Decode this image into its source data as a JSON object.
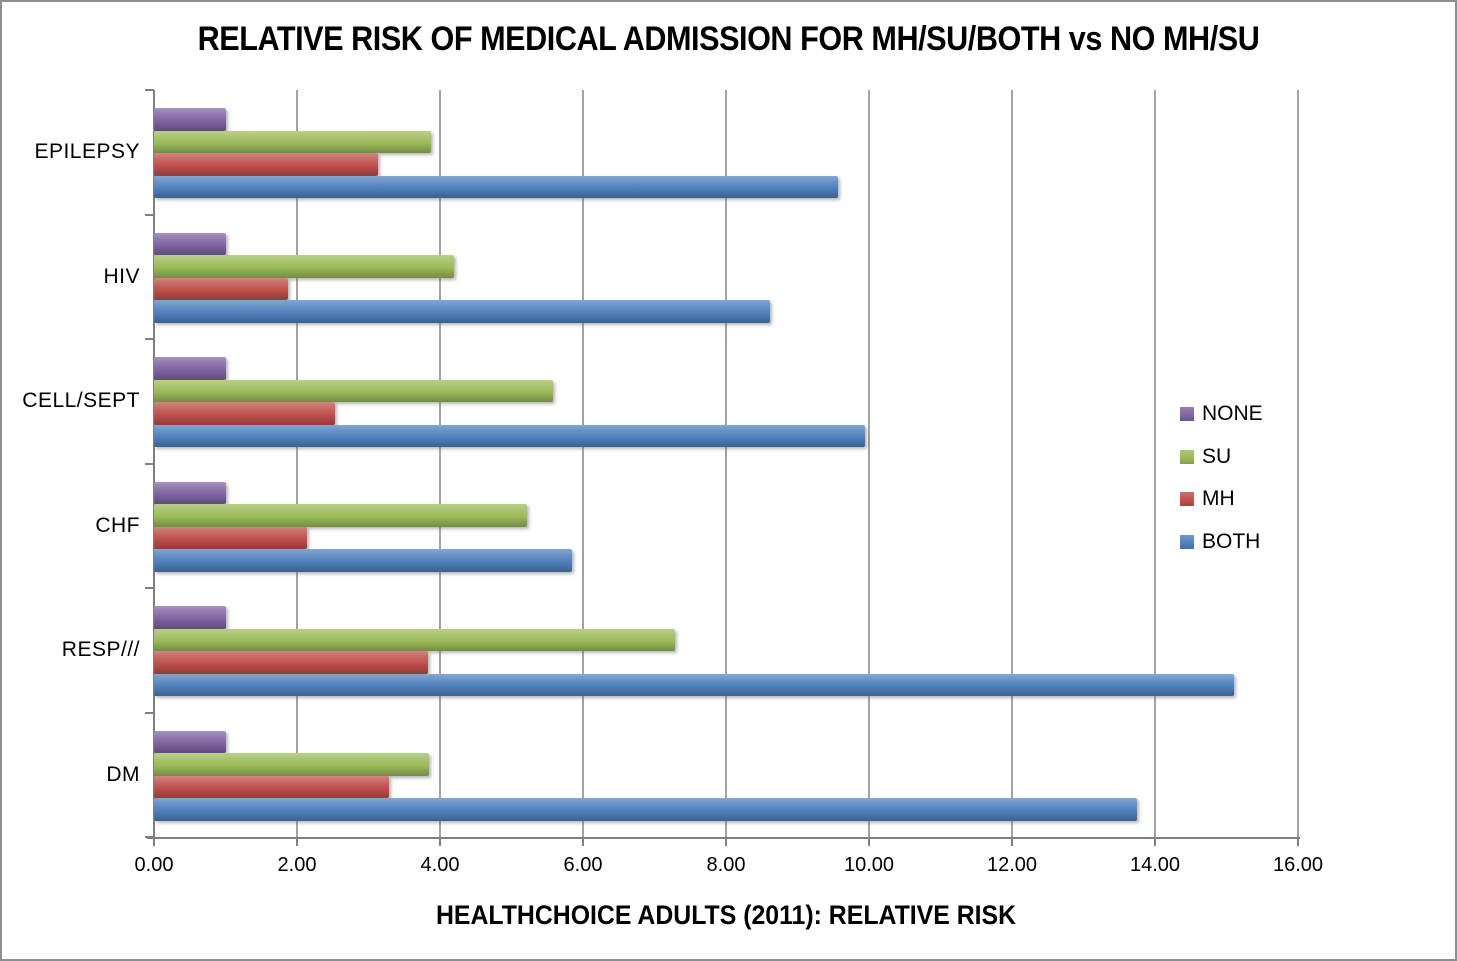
{
  "title": "RELATIVE RISK OF MEDICAL ADMISSION FOR MH/SU/BOTH vs NO MH/SU",
  "chart_data": {
    "type": "bar",
    "orientation": "horizontal",
    "title": "RELATIVE RISK OF MEDICAL ADMISSION FOR MH/SU/BOTH vs NO MH/SU",
    "xlabel": "HEALTHCHOICE ADULTS (2011): RELATIVE RISK",
    "ylabel": "",
    "categories": [
      "EPILEPSY",
      "HIV",
      "CELL/SEPT",
      "CHF",
      "RESP///",
      "DM"
    ],
    "series": [
      {
        "name": "NONE",
        "color": "#8064A2",
        "values": [
          1.0,
          1.0,
          1.0,
          1.0,
          1.0,
          1.0
        ]
      },
      {
        "name": "SU",
        "color": "#9BBB59",
        "values": [
          3.87,
          4.2,
          5.58,
          5.21,
          7.28,
          3.85
        ]
      },
      {
        "name": "MH",
        "color": "#C0504D",
        "values": [
          3.13,
          1.87,
          2.53,
          2.14,
          3.83,
          3.28
        ]
      },
      {
        "name": "BOTH",
        "color": "#4F81BD",
        "values": [
          9.57,
          8.62,
          9.95,
          5.84,
          15.11,
          13.75
        ]
      }
    ],
    "xlim": [
      0,
      16
    ],
    "xtick_labels": [
      "0.00",
      "2.00",
      "4.00",
      "6.00",
      "8.00",
      "10.00",
      "12.00",
      "14.00",
      "16.00"
    ],
    "xtick_values": [
      0,
      2,
      4,
      6,
      8,
      10,
      12,
      14,
      16
    ],
    "grid": true,
    "gridline_color": "#a3a3a3",
    "axis_color": "#7f7f7f",
    "legend_position": "right-inside",
    "legend_order": [
      "NONE",
      "SU",
      "MH",
      "BOTH"
    ]
  }
}
